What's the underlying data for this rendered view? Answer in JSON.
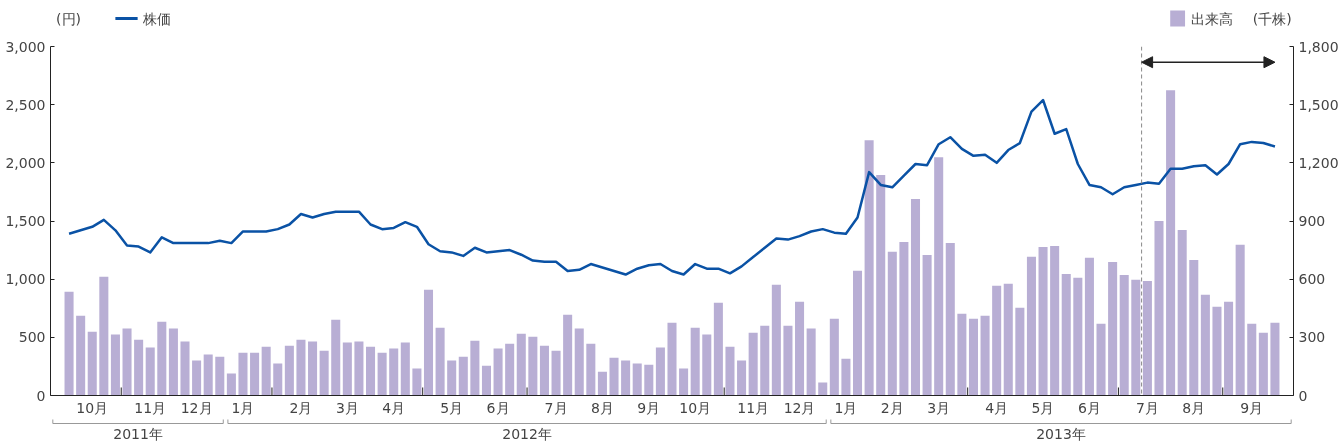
{
  "chart_data": {
    "type": "bar",
    "ylabel": "(円)",
    "y2label": "(千株)",
    "categories": [
      null,
      null,
      "10月",
      null,
      null,
      null,
      null,
      "11月",
      null,
      null,
      null,
      "12月",
      null,
      null,
      null,
      "1月",
      null,
      null,
      null,
      null,
      "2月",
      null,
      null,
      null,
      "3月",
      null,
      null,
      null,
      "4月",
      null,
      null,
      null,
      null,
      "5月",
      null,
      null,
      null,
      "6月",
      null,
      null,
      null,
      null,
      "7月",
      null,
      null,
      null,
      "8月",
      null,
      null,
      null,
      "9月",
      null,
      null,
      null,
      "10月",
      null,
      null,
      null,
      null,
      "11月",
      null,
      null,
      null,
      "12月",
      null,
      null,
      null,
      "1月",
      null,
      null,
      null,
      "2月",
      null,
      null,
      null,
      "3月",
      null,
      null,
      null,
      null,
      "4月",
      null,
      null,
      null,
      "5月",
      null,
      null,
      null,
      "6月",
      null,
      null,
      null,
      null,
      "7月",
      null,
      null,
      null,
      "8月",
      null,
      null,
      null,
      null,
      "9月",
      null,
      null
    ],
    "series": [
      {
        "name": "出来高",
        "axis": "y2",
        "color": "#b8aed4",
        "values": [
          535,
          411,
          329,
          612,
          314,
          345,
          288,
          247,
          381,
          345,
          278,
          180,
          211,
          200,
          113,
          221,
          221,
          252,
          165,
          257,
          288,
          278,
          231,
          391,
          273,
          278,
          252,
          221,
          242,
          273,
          139,
          545,
          350,
          180,
          200,
          283,
          154,
          242,
          267,
          319,
          303,
          257,
          231,
          417,
          345,
          267,
          123,
          195,
          180,
          165,
          159,
          247,
          375,
          139,
          350,
          314,
          478,
          252,
          180,
          324,
          360,
          571,
          360,
          483,
          345,
          67,
          396,
          190,
          643,
          1317,
          1137,
          741,
          792,
          1013,
          725,
          1229,
          787,
          422,
          396,
          411,
          566,
          576,
          453,
          715,
          766,
          771,
          627,
          607,
          710,
          370,
          689,
          622,
          597,
          591,
          900,
          1574,
          854,
          699,
          519,
          458,
          483,
          777,
          370,
          324,
          375
        ]
      },
      {
        "name": "株価",
        "type": "line",
        "color": "#0a52a5",
        "values": [
          1390,
          1420,
          1450,
          1510,
          1420,
          1290,
          1280,
          1230,
          1360,
          1310,
          1310,
          1310,
          1310,
          1330,
          1310,
          1410,
          1410,
          1410,
          1430,
          1470,
          1560,
          1530,
          1560,
          1580,
          1580,
          1580,
          1470,
          1430,
          1440,
          1490,
          1450,
          1300,
          1240,
          1230,
          1200,
          1270,
          1230,
          1240,
          1250,
          1210,
          1160,
          1150,
          1150,
          1070,
          1080,
          1130,
          1100,
          1070,
          1040,
          1090,
          1120,
          1130,
          1070,
          1040,
          1130,
          1090,
          1090,
          1050,
          1110,
          1190,
          1270,
          1350,
          1340,
          1370,
          1410,
          1430,
          1400,
          1390,
          1530,
          1920,
          1810,
          1790,
          1890,
          1990,
          1980,
          2160,
          2220,
          2120,
          2060,
          2070,
          2000,
          2110,
          2170,
          2440,
          2540,
          2250,
          2290,
          1990,
          1810,
          1790,
          1730,
          1790,
          1810,
          1830,
          1820,
          1950,
          1950,
          1970,
          1980,
          1900,
          1990,
          2160,
          2180,
          2170,
          2140
        ]
      }
    ],
    "ylim": [
      0,
      3000
    ],
    "yticks": [
      0,
      500,
      {
        "value": 1000,
        "label": "1,000"
      },
      {
        "value": 1500,
        "label": "1,500"
      },
      {
        "value": 2000,
        "label": "2,000"
      },
      {
        "value": 2500,
        "label": "2,500"
      },
      {
        "value": 3000,
        "label": "3,000"
      }
    ],
    "y2lim": [
      0,
      1800
    ],
    "y2ticks": [
      0,
      300,
      600,
      900,
      {
        "value": 1200,
        "label": "1,200"
      },
      {
        "value": 1500,
        "label": "1,500"
      },
      {
        "value": 1800,
        "label": "1,800"
      }
    ],
    "annotations": [
      "2011年",
      "2012年",
      "2013年"
    ],
    "legend": "top"
  }
}
